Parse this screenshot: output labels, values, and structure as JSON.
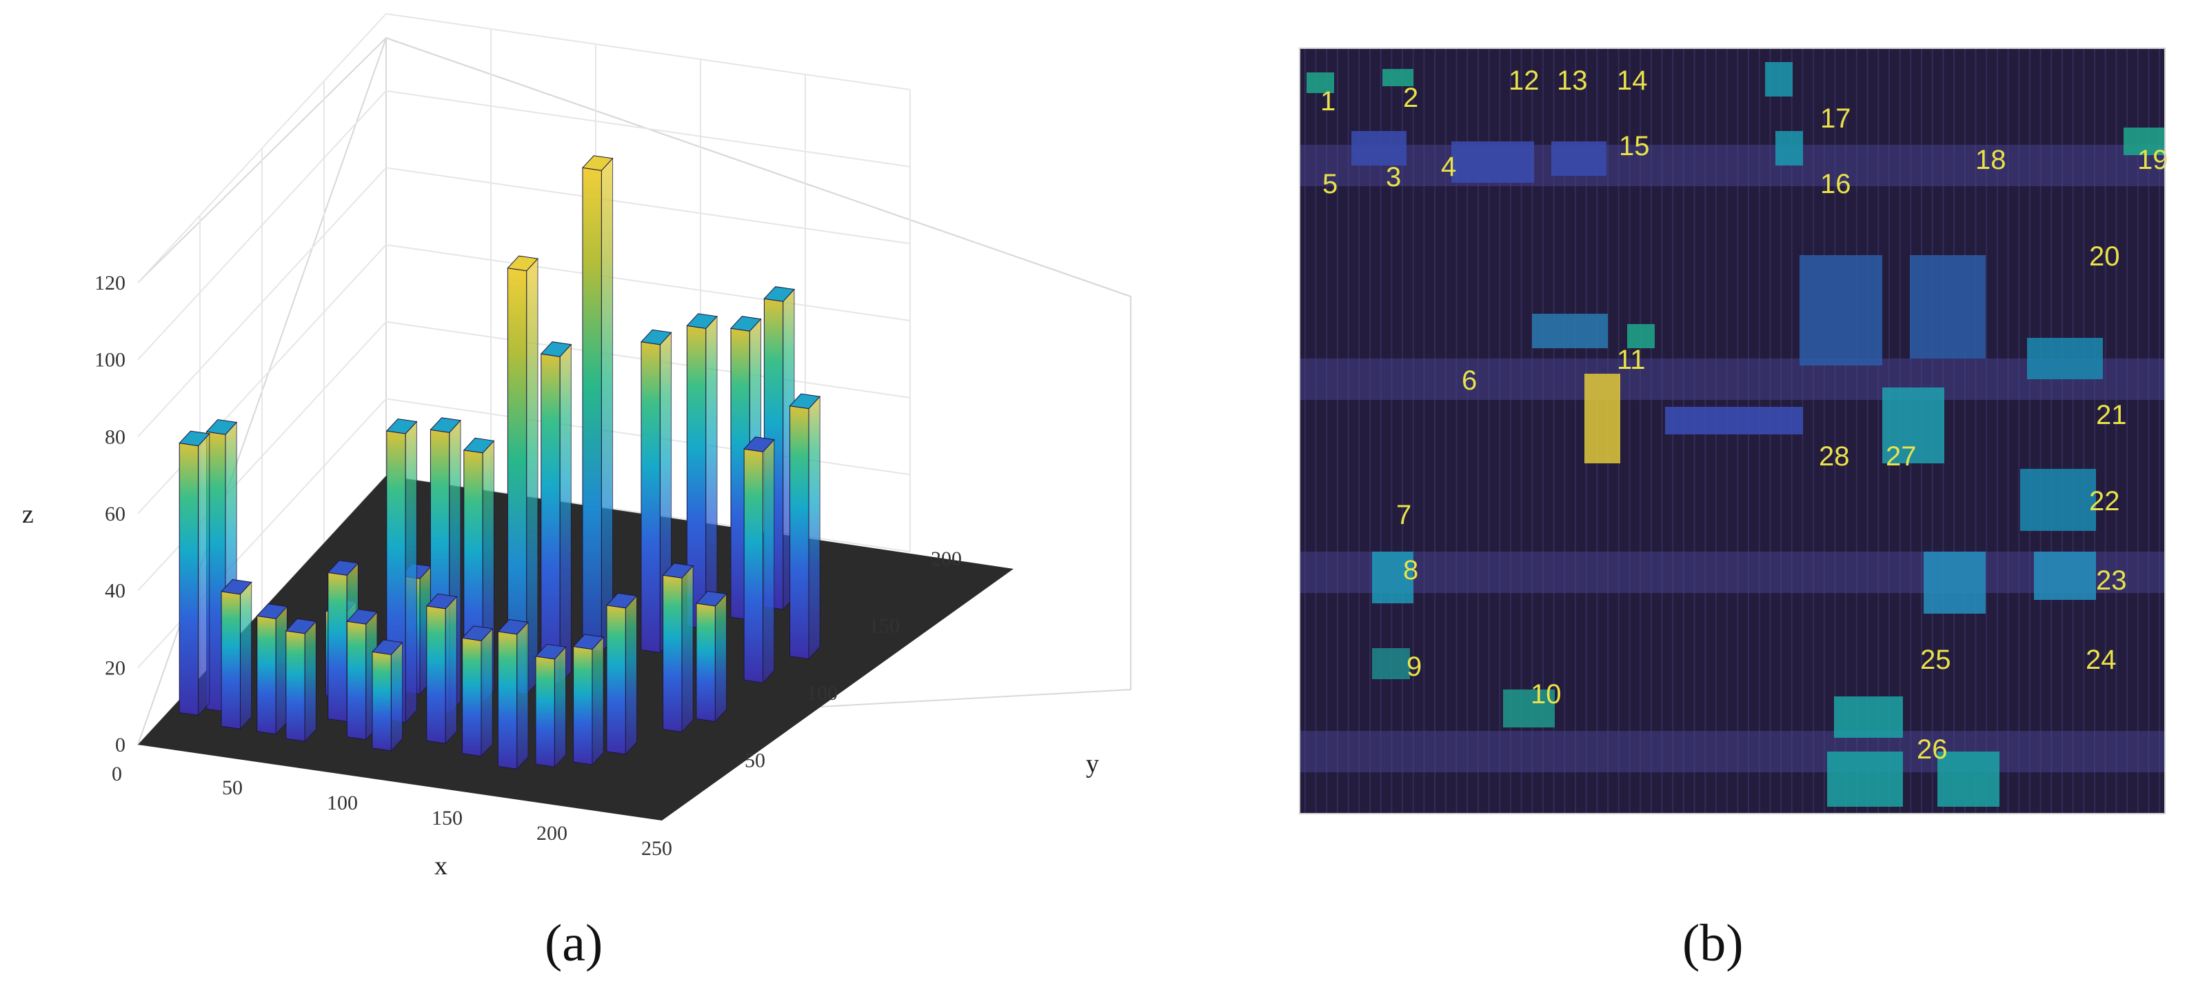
{
  "panels": {
    "a": "(a)",
    "b": "(b)"
  },
  "chart_data": [
    {
      "type": "bar3d",
      "title": "",
      "xlabel": "x",
      "ylabel": "y",
      "zlabel": "z",
      "xlim": [
        0,
        250
      ],
      "ylim": [
        0,
        200
      ],
      "zlim": [
        0,
        120
      ],
      "x_ticks": [
        "50",
        "100",
        "150",
        "200",
        "250"
      ],
      "x_origin_tick": "0",
      "y_ticks": [
        "50",
        "100",
        "150",
        "200"
      ],
      "z_ticks": [
        "0",
        "20",
        "40",
        "60",
        "80",
        "100",
        "120"
      ],
      "colormap": "parula",
      "bars": [
        {
          "x": 5,
          "y": 25,
          "z": 70
        },
        {
          "x": 15,
          "y": 30,
          "z": 72
        },
        {
          "x": 28,
          "y": 20,
          "z": 35
        },
        {
          "x": 45,
          "y": 20,
          "z": 30
        },
        {
          "x": 60,
          "y": 18,
          "z": 28
        },
        {
          "x": 70,
          "y": 35,
          "z": 38
        },
        {
          "x": 85,
          "y": 25,
          "z": 30
        },
        {
          "x": 95,
          "y": 40,
          "z": 75
        },
        {
          "x": 110,
          "y": 50,
          "z": 73
        },
        {
          "x": 120,
          "y": 60,
          "z": 65
        },
        {
          "x": 135,
          "y": 70,
          "z": 110
        },
        {
          "x": 145,
          "y": 80,
          "z": 85
        },
        {
          "x": 150,
          "y": 105,
          "z": 125
        },
        {
          "x": 175,
          "y": 110,
          "z": 80
        },
        {
          "x": 185,
          "y": 130,
          "z": 78
        },
        {
          "x": 200,
          "y": 140,
          "z": 75
        },
        {
          "x": 210,
          "y": 150,
          "z": 80
        },
        {
          "x": 100,
          "y": 20,
          "z": 25
        },
        {
          "x": 120,
          "y": 30,
          "z": 35
        },
        {
          "x": 140,
          "y": 25,
          "z": 30
        },
        {
          "x": 160,
          "y": 20,
          "z": 35
        },
        {
          "x": 175,
          "y": 25,
          "z": 28
        },
        {
          "x": 190,
          "y": 30,
          "z": 30
        },
        {
          "x": 200,
          "y": 40,
          "z": 38
        },
        {
          "x": 215,
          "y": 60,
          "z": 40
        },
        {
          "x": 225,
          "y": 70,
          "z": 30
        },
        {
          "x": 230,
          "y": 100,
          "z": 60
        },
        {
          "x": 240,
          "y": 120,
          "z": 65
        },
        {
          "x": 90,
          "y": 60,
          "z": 30
        },
        {
          "x": 60,
          "y": 50,
          "z": 22
        }
      ]
    },
    {
      "type": "heatmap",
      "title": "",
      "rows": 64,
      "cols": 80,
      "colormap": "parula",
      "annotations": [
        "1",
        "2",
        "3",
        "4",
        "5",
        "6",
        "7",
        "8",
        "9",
        "10",
        "11",
        "12",
        "13",
        "14",
        "15",
        "16",
        "17",
        "18",
        "19",
        "20",
        "21",
        "22",
        "23",
        "24",
        "25",
        "26",
        "27",
        "28"
      ]
    }
  ]
}
